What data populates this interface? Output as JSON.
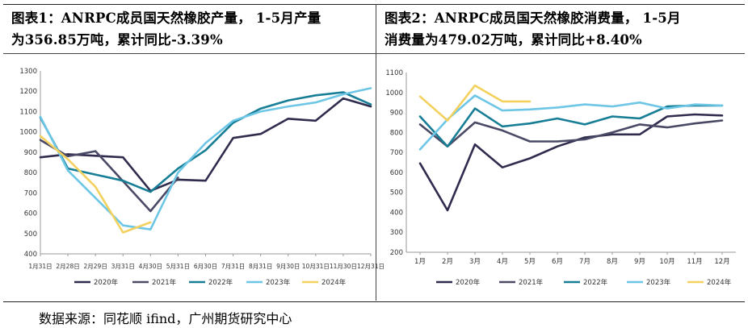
{
  "source": "数据来源：同花顺 ifind，广州期货研究中心",
  "panels": [
    {
      "title": "图表1：ANRPC成员国天然橡胶产量， 1-5月产量为356.85万吨，累计同比-3.39%",
      "title_lines": [
        "图表1：ANRPC成员国天然橡胶产量， 1-5月产量",
        "为356.85万吨，累计同比-3.39%"
      ]
    },
    {
      "title": "图表2：ANRPC成员国天然橡胶消费量， 1-5月消费量为479.02万吨，累计同比+8.40%",
      "title_lines": [
        "图表2：ANRPC成员国天然橡胶消费量， 1-5月",
        "消费量为479.02万吨，累计同比+8.40%"
      ]
    }
  ],
  "chart_data": [
    {
      "type": "line",
      "title": "",
      "xlabel": "",
      "ylabel": "",
      "categories": [
        "1月31日",
        "2月28日",
        "2月29日",
        "3月31日",
        "4月30日",
        "5月31日",
        "6月30日",
        "7月31日",
        "8月31日",
        "9月30日",
        "10月31日",
        "11月30日",
        "12月31日"
      ],
      "ylim": [
        400,
        1300
      ],
      "yticks": [
        400,
        500,
        600,
        700,
        800,
        900,
        1000,
        1100,
        1200,
        1300
      ],
      "grid": false,
      "legend": "bottom",
      "series": [
        {
          "name": "2020年",
          "color": "#2f2c4e",
          "values": [
            875,
            890,
            null,
            875,
            710,
            765,
            760,
            970,
            990,
            1065,
            1055,
            1165,
            1125
          ]
        },
        {
          "name": "2021年",
          "color": "#4a4a66",
          "values": [
            960,
            880,
            905,
            null,
            610,
            775,
            null,
            null,
            null,
            null,
            null,
            null,
            null
          ]
        },
        {
          "name": "2022年",
          "color": "#177e96",
          "values": [
            1070,
            820,
            null,
            760,
            705,
            820,
            910,
            1045,
            1115,
            1155,
            1180,
            1195,
            1135
          ]
        },
        {
          "name": "2023年",
          "color": "#6ec6e6",
          "values": [
            1075,
            810,
            null,
            540,
            520,
            800,
            945,
            1055,
            1100,
            1125,
            1145,
            1185,
            1215
          ]
        },
        {
          "name": "2024年",
          "color": "#f3d15f",
          "values": [
            980,
            865,
            730,
            505,
            555,
            null,
            null,
            null,
            null,
            null,
            null,
            null,
            null
          ]
        }
      ]
    },
    {
      "type": "line",
      "title": "",
      "xlabel": "",
      "ylabel": "",
      "categories": [
        "1月",
        "2月",
        "3月",
        "4月",
        "5月",
        "6月",
        "7月",
        "8月",
        "9月",
        "10月",
        "11月",
        "12月"
      ],
      "ylim": [
        200,
        1100
      ],
      "yticks": [
        200,
        300,
        400,
        500,
        600,
        700,
        800,
        900,
        1000,
        1100
      ],
      "grid": false,
      "legend": "bottom",
      "series": [
        {
          "name": "2020年",
          "color": "#2f2c4e",
          "values": [
            645,
            410,
            740,
            625,
            670,
            730,
            775,
            790,
            790,
            880,
            890,
            885
          ]
        },
        {
          "name": "2021年",
          "color": "#4a4a66",
          "values": [
            840,
            730,
            850,
            810,
            755,
            755,
            765,
            800,
            840,
            825,
            845,
            860
          ]
        },
        {
          "name": "2022年",
          "color": "#177e96",
          "values": [
            880,
            730,
            920,
            830,
            845,
            870,
            840,
            880,
            870,
            930,
            935,
            935
          ]
        },
        {
          "name": "2023年",
          "color": "#6ec6e6",
          "values": [
            715,
            865,
            985,
            910,
            915,
            925,
            940,
            930,
            950,
            920,
            940,
            935
          ]
        },
        {
          "name": "2024年",
          "color": "#f3d15f",
          "values": [
            980,
            860,
            1035,
            955,
            955,
            null,
            null,
            null,
            null,
            null,
            null,
            null
          ]
        }
      ]
    }
  ]
}
